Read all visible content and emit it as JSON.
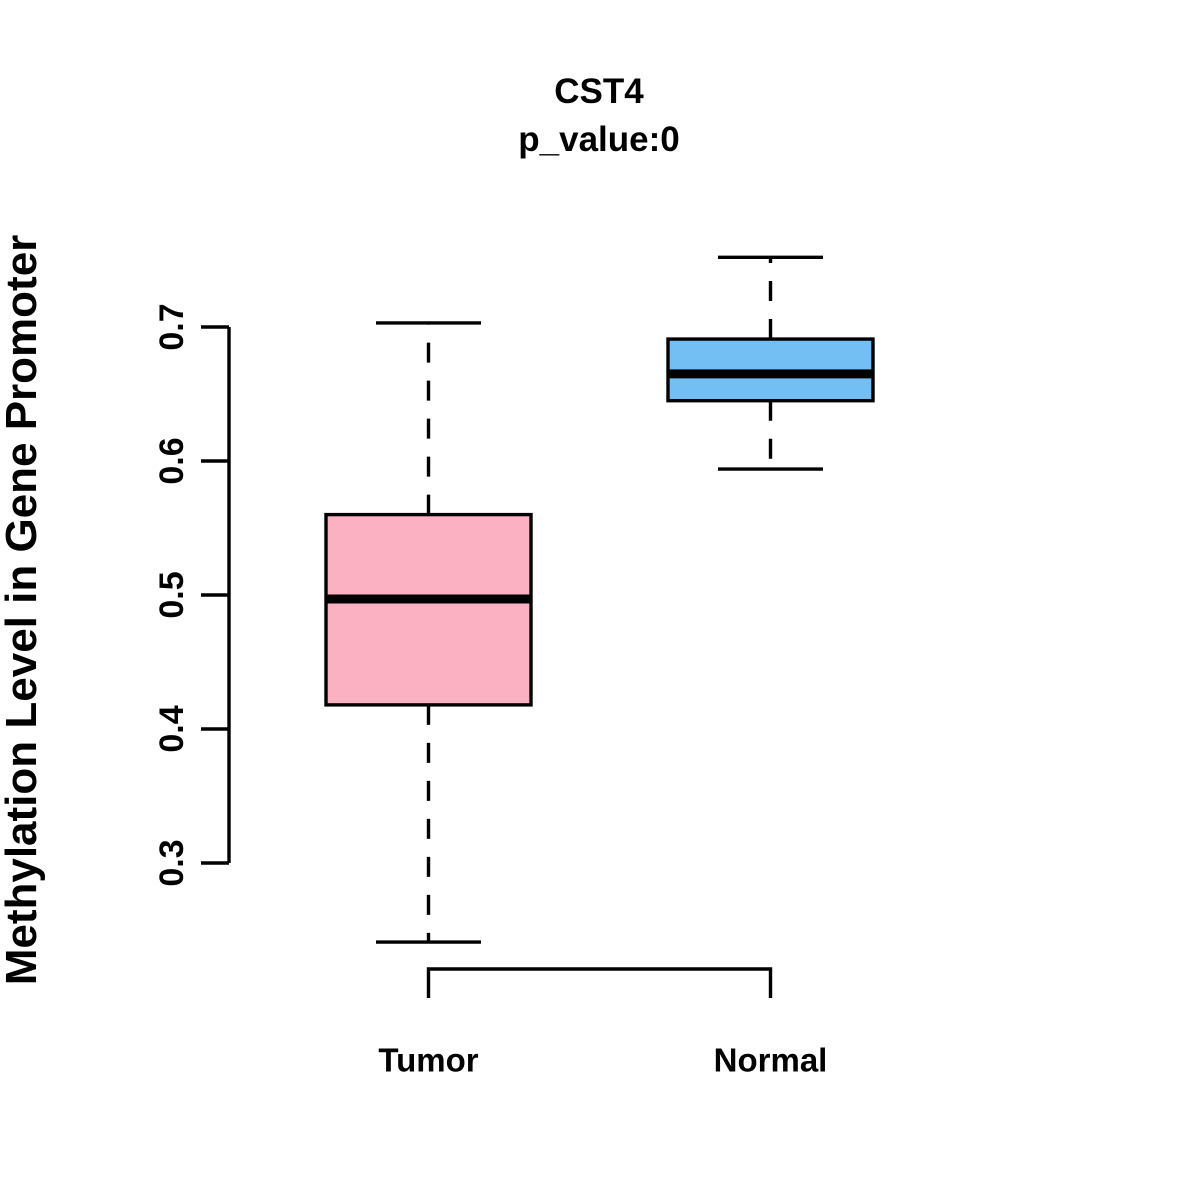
{
  "chart_data": {
    "type": "boxplot",
    "title": "CST4",
    "subtitle": "p_value:0",
    "p_value": 0,
    "ylabel": "Methylation Level in Gene Promoter",
    "categories": [
      "Tumor",
      "Normal"
    ],
    "yticks": [
      "0.3",
      "0.4",
      "0.5",
      "0.6",
      "0.7"
    ],
    "ylim": [
      0.24,
      0.76
    ],
    "grid": false,
    "legend": "none",
    "whisker_style": "dashed",
    "line_color": "#000000",
    "background_color": "#FFFFFF",
    "series": [
      {
        "name": "Tumor",
        "color": "#FCB1C3",
        "stats": {
          "low": 0.241,
          "q1": 0.418,
          "median": 0.497,
          "q3": 0.56,
          "high": 0.703
        }
      },
      {
        "name": "Normal",
        "color": "#73BFF4",
        "stats": {
          "low": 0.594,
          "q1": 0.645,
          "median": 0.665,
          "q3": 0.691,
          "high": 0.752
        }
      }
    ]
  }
}
